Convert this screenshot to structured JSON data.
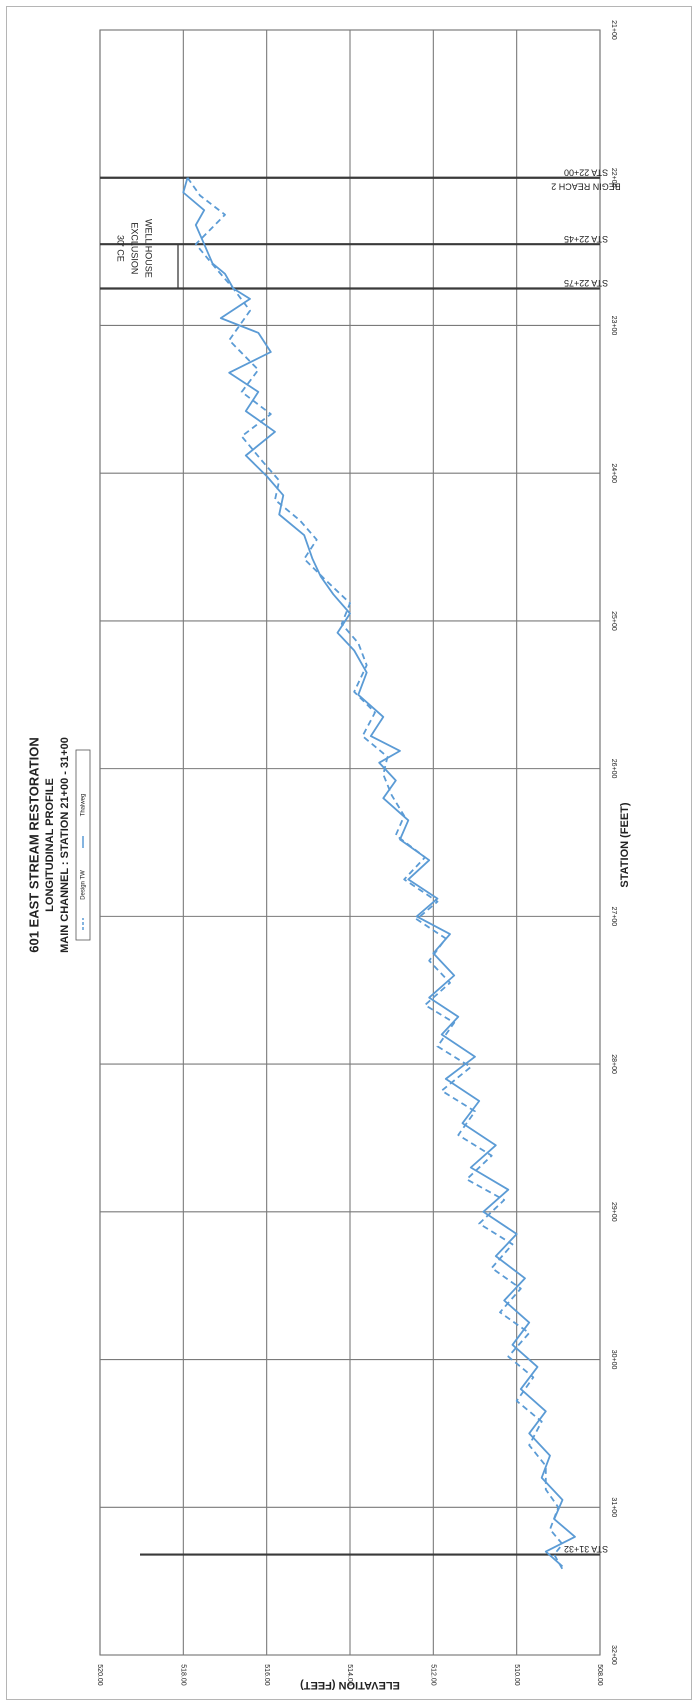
{
  "chart_data": {
    "type": "line",
    "title": "601 EAST STREAM RESTORATION",
    "subtitle_1": "LONGITUDINAL PROFILE",
    "subtitle_2": "MAIN CHANNEL : STATION 21+00 - 31+00",
    "xlabel": "STATION (FEET)",
    "ylabel": "ELEVATION (FEET)",
    "xlim": [
      2100,
      3200
    ],
    "ylim": [
      508,
      520
    ],
    "x_tick_values": [
      2100,
      2200,
      2300,
      2400,
      2500,
      2600,
      2700,
      2800,
      2900,
      3000,
      3100,
      3200
    ],
    "x_tick_labels": [
      "21+00",
      "22+00",
      "23+00",
      "24+00",
      "25+00",
      "26+00",
      "27+00",
      "28+00",
      "29+00",
      "30+00",
      "31+00",
      "32+00"
    ],
    "y_tick_values": [
      508,
      510,
      512,
      514,
      516,
      518,
      520
    ],
    "y_tick_labels": [
      "508.00",
      "510.00",
      "512.00",
      "514.00",
      "516.00",
      "518.00",
      "520.00"
    ],
    "grid": true,
    "legend_position": "top",
    "legend": [
      {
        "label": "Design TW",
        "style": "dashed"
      },
      {
        "label": "Thalweg",
        "style": "solid"
      }
    ],
    "colors": {
      "series": "#5b9bd5",
      "grid": "#7a7a7a",
      "marker": "#3a3a3a",
      "text": "#222222"
    },
    "markers": [
      {
        "x": 2200,
        "label_1": "STA 22+00",
        "label_2": "BEGIN REACH 2"
      },
      {
        "x": 2245,
        "label_1": "STA 22+45"
      },
      {
        "x": 2275,
        "label_1": "STA 22+75"
      },
      {
        "x": 3132,
        "label_1": "STA 31+32"
      }
    ],
    "annotation": {
      "lines": [
        "30' CE",
        "EXCLUSION",
        "WELL HOUSE"
      ],
      "x_from": 2245,
      "x_to": 2275
    },
    "series": [
      {
        "name": "Design TW",
        "style": "dashed",
        "x": [
          2200,
          2212,
          2225,
          2245,
          2262,
          2275,
          2290,
          2310,
          2330,
          2345,
          2360,
          2375,
          2392,
          2405,
          2418,
          2432,
          2445,
          2458,
          2472,
          2488,
          2502,
          2515,
          2530,
          2548,
          2562,
          2578,
          2592,
          2604,
          2618,
          2632,
          2645,
          2660,
          2675,
          2690,
          2702,
          2715,
          2730,
          2745,
          2760,
          2772,
          2788,
          2802,
          2818,
          2832,
          2848,
          2862,
          2878,
          2892,
          2908,
          2922,
          2938,
          2952,
          2968,
          2982,
          2998,
          3012,
          3028,
          3042,
          3058,
          3072,
          3088,
          3100,
          3115,
          3125,
          3132,
          3142
        ],
        "y": [
          517.9,
          517.6,
          517.0,
          517.7,
          517.2,
          516.8,
          516.4,
          516.9,
          516.2,
          516.6,
          515.9,
          516.6,
          516.1,
          515.7,
          515.8,
          515.2,
          514.8,
          515.1,
          514.6,
          514.0,
          514.2,
          513.8,
          513.6,
          513.9,
          513.4,
          513.7,
          513.1,
          513.2,
          513.0,
          512.7,
          512.9,
          512.2,
          512.7,
          511.9,
          512.4,
          511.7,
          512.1,
          511.6,
          512.2,
          511.5,
          511.9,
          511.1,
          511.8,
          511.0,
          511.4,
          510.6,
          511.2,
          510.3,
          510.9,
          510.1,
          510.6,
          509.9,
          510.4,
          509.7,
          510.2,
          509.6,
          510.0,
          509.4,
          509.7,
          509.3,
          509.3,
          509.0,
          509.2,
          508.9,
          509.1,
          508.9
        ]
      },
      {
        "name": "Thalweg",
        "style": "solid",
        "x": [
          2200,
          2210,
          2222,
          2232,
          2245,
          2258,
          2265,
          2275,
          2282,
          2295,
          2305,
          2318,
          2332,
          2345,
          2358,
          2372,
          2388,
          2402,
          2415,
          2428,
          2442,
          2458,
          2470,
          2482,
          2495,
          2508,
          2520,
          2535,
          2550,
          2565,
          2578,
          2588,
          2596,
          2608,
          2620,
          2635,
          2648,
          2662,
          2675,
          2688,
          2700,
          2712,
          2725,
          2740,
          2755,
          2768,
          2780,
          2795,
          2810,
          2825,
          2840,
          2855,
          2870,
          2885,
          2900,
          2915,
          2930,
          2945,
          2960,
          2975,
          2990,
          3005,
          3020,
          3035,
          3050,
          3065,
          3080,
          3095,
          3108,
          3120,
          3130,
          3140
        ],
        "y": [
          517.9,
          518.0,
          517.5,
          517.7,
          517.5,
          517.3,
          517.0,
          516.8,
          516.4,
          517.1,
          516.2,
          515.9,
          516.9,
          516.2,
          516.5,
          515.8,
          516.5,
          516.0,
          515.6,
          515.7,
          515.1,
          514.9,
          514.7,
          514.4,
          514.0,
          514.3,
          513.9,
          513.6,
          513.8,
          513.2,
          513.5,
          512.8,
          513.3,
          512.9,
          513.2,
          512.6,
          512.8,
          512.1,
          512.6,
          511.9,
          512.4,
          511.6,
          512.0,
          511.5,
          512.1,
          511.4,
          511.8,
          511.0,
          511.7,
          510.9,
          511.3,
          510.5,
          511.1,
          510.2,
          510.8,
          510.0,
          510.5,
          509.8,
          510.3,
          509.7,
          510.1,
          509.5,
          509.9,
          509.3,
          509.7,
          509.2,
          509.4,
          508.9,
          509.1,
          508.6,
          509.3,
          508.9
        ]
      }
    ]
  }
}
